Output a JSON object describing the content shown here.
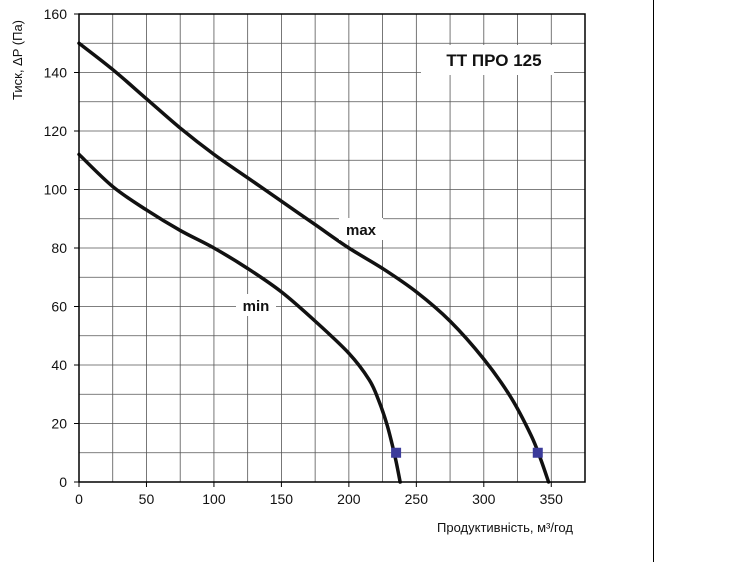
{
  "chart_data": {
    "type": "line",
    "title": "ТТ ПРО 125",
    "xlabel": "Продуктивність, м³/год",
    "ylabel": "Тиск, ΔP (Па)",
    "xlim": [
      0,
      375
    ],
    "ylim": [
      0,
      160
    ],
    "x_ticks": [
      0,
      50,
      100,
      150,
      200,
      250,
      300,
      350
    ],
    "y_ticks": [
      0,
      20,
      40,
      60,
      80,
      100,
      120,
      140,
      160
    ],
    "grid": true,
    "series": [
      {
        "name": "max",
        "color": "#111111",
        "x": [
          0,
          25,
          50,
          75,
          100,
          125,
          150,
          175,
          200,
          225,
          250,
          275,
          300,
          320,
          335,
          342,
          348
        ],
        "y": [
          150,
          141,
          131,
          121,
          112,
          104,
          96,
          88,
          80,
          73,
          65,
          55,
          42,
          29,
          16,
          8,
          0
        ],
        "operating_point": {
          "x": 340,
          "y": 10
        }
      },
      {
        "name": "min",
        "color": "#111111",
        "x": [
          0,
          25,
          50,
          75,
          100,
          125,
          150,
          175,
          200,
          215,
          222,
          228,
          232,
          235,
          238
        ],
        "y": [
          112,
          101,
          93,
          86,
          80,
          73,
          65,
          55,
          44,
          35,
          28,
          20,
          13,
          7,
          0
        ],
        "operating_point": {
          "x": 235,
          "y": 10
        }
      }
    ],
    "operating_point_color": "#3b3b9a"
  }
}
